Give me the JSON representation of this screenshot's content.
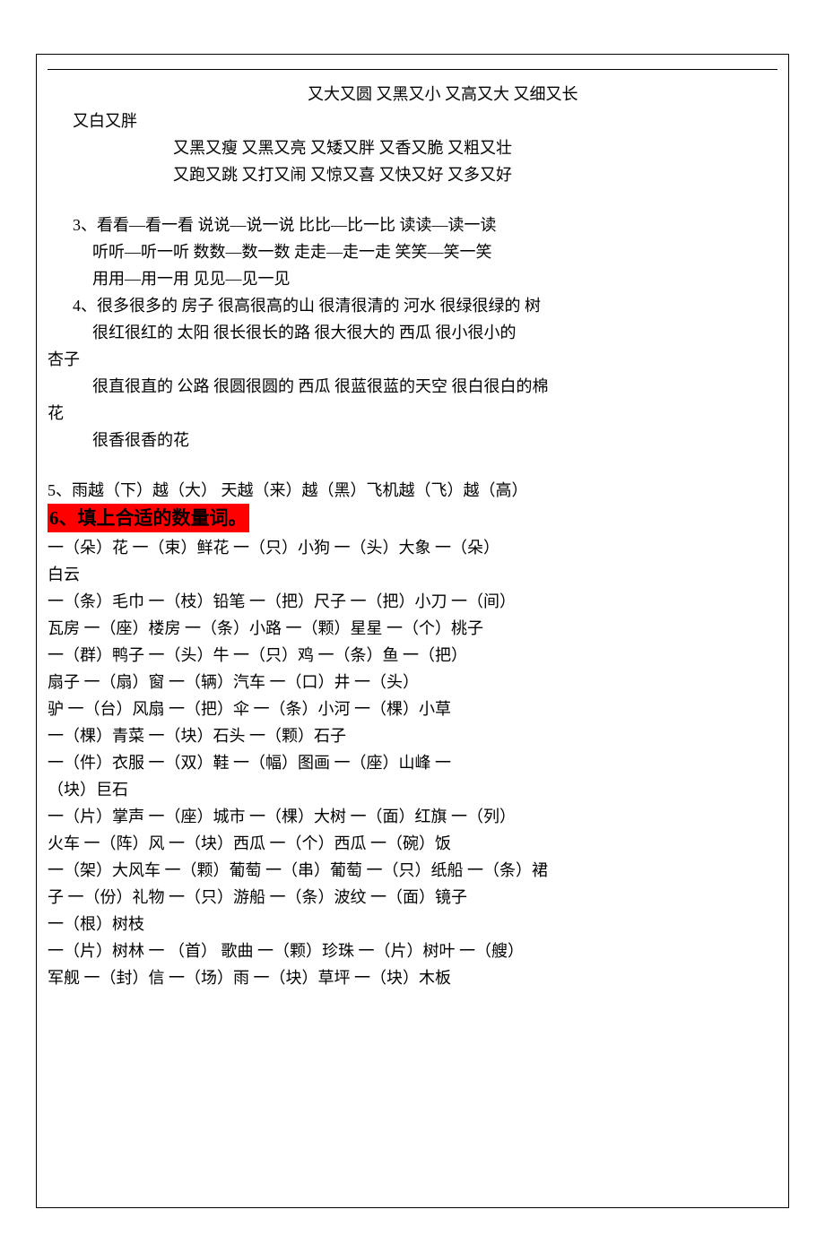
{
  "section_top": {
    "row1": "又大又圆        又黑又小        又高又大        又细又长",
    "row1_cont": "又白又胖",
    "row2": "又黑又瘦      又黑又亮      又矮又胖      又香又脆      又粗又壮",
    "row3": "又跑又跳      又打又闹      又惊又喜      又快又好      又多又好"
  },
  "section3": {
    "row1": "3、看看—看一看     说说—说一说       比比—比一比       读读—读一读",
    "row2": "听听—听一听   数数—数一数     走走—走一走       笑笑—笑一笑",
    "row3": "用用—用一用       见见—见一见"
  },
  "section4": {
    "row1": "4、很多很多的 房子   很高很高的山           很清很清的 河水         很绿很绿的 树",
    "row2": "很红很红的 太阳     很长很长的路           很大很大的 西瓜         很小很小的",
    "row2_cont": "杏子",
    "row3": "很直很直的 公路     很圆很圆的 西瓜       很蓝很蓝的天空         很白很白的棉",
    "row3_cont": "花",
    "row4": "很香很香的花"
  },
  "section5": {
    "row": "5、雨越（下）越（大）       天越（来）越（黑）飞机越（飞）越（高）"
  },
  "section6": {
    "heading": "6、填上合适的数量词。",
    "rows": [
      "一（朵）花           一（束）鲜花       一（只）小狗           一（头）大象     一（朵）",
      "白云",
      "一（条）毛巾    一（枝）铅笔        一（把）尺子        一（把）小刀        一（间）",
      "瓦房       一（座）楼房      一（条）小路      一（颗）星星            一（个）桃子",
      "   一（群）鸭子       一（头）牛         一（只）鸡       一（条）鱼      一（把）",
      "扇子           一（扇）窗          一（辆）汽车        一（口）井            一（头）",
      "驴        一（台）风扇      一（把）伞              一（条）小河     一（棵）小草",
      "        一（棵）青菜       一（块）石头    一（颗）石子",
      "一（件）衣服          一（双）鞋         一（幅）图画       一（座）山峰      一",
      "（块）巨石",
      "一（片）掌声     一（座）城市         一（棵）大树      一（面）红旗        一（列）",
      "火车       一（阵）风        一（块）西瓜    一（个）西瓜           一（碗）饭",
      "   一（架）大风车    一（颗）葡萄      一（串）葡萄    一（只）纸船     一（条）裙",
      "子           一（份）礼物      一（只）游船        一（条）波纹      一（面）镜子",
      "一（根）树枝",
      "一（片）树林         一 （首） 歌曲      一（颗）珍珠       一（片）树叶      一（艘）",
      "军舰     一（封）信         一（场）雨                一（块）草坪      一（块）木板"
    ]
  },
  "colors": {
    "text": "#000000",
    "background": "#ffffff",
    "highlight": "#ff0000"
  }
}
